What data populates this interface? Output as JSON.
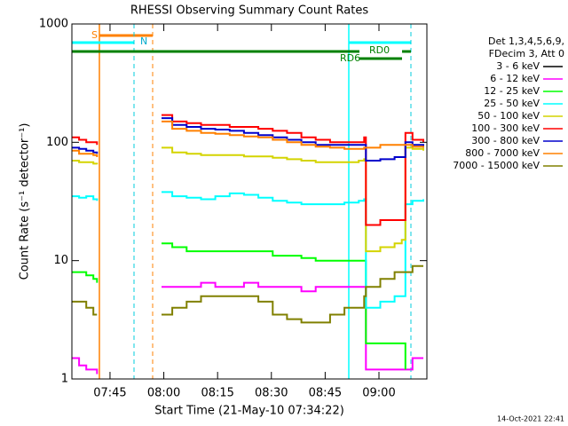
{
  "chart_data": {
    "type": "line",
    "title": "RHESSI Observing Summary Count Rates",
    "xlabel": "Start Time (21-May-10 07:34:22)",
    "ylabel": "Count Rate (s⁻¹ detector⁻¹)",
    "legend_title": [
      "Det 1,3,4,5,6,9,",
      "FDecim 3, Att 0"
    ],
    "legend": "right",
    "log_y": true,
    "footer": "14-Oct-2021 22:41",
    "annotations": [
      "S",
      "N",
      "RD0",
      "RD6"
    ],
    "xlim": [
      0,
      99
    ],
    "xticks": [
      {
        "value": 10.633,
        "label": "07:45"
      },
      {
        "value": 25.633,
        "label": "08:00"
      },
      {
        "value": 40.633,
        "label": "08:15"
      },
      {
        "value": 55.633,
        "label": "08:30"
      },
      {
        "value": 70.633,
        "label": "08:45"
      },
      {
        "value": 85.633,
        "label": "09:00"
      }
    ],
    "ylim": [
      1,
      1000
    ],
    "yticks": [
      1,
      10,
      100,
      1000
    ],
    "x": [
      0,
      2,
      4,
      6,
      7,
      16,
      25,
      28,
      32,
      36,
      40,
      44,
      48,
      52,
      56,
      60,
      64,
      68,
      72,
      76,
      80,
      81.5,
      82,
      86,
      90,
      92,
      93,
      95,
      98
    ],
    "series": [
      {
        "name": "3 - 6 keV",
        "color": "#000000",
        "values": [
          null,
          null,
          null,
          null,
          null,
          null,
          null,
          null,
          null,
          null,
          null,
          null,
          null,
          null,
          null,
          null,
          null,
          null,
          null,
          null,
          null,
          null,
          null,
          null,
          null,
          null,
          null,
          null,
          null
        ]
      },
      {
        "name": "6 - 12 keV",
        "color": "#ff00ff",
        "values": [
          1.5,
          1.3,
          1.2,
          1.2,
          1.1,
          null,
          6,
          6,
          6,
          6.5,
          6,
          6,
          6.5,
          6,
          6,
          6,
          5.5,
          6,
          6,
          6,
          6,
          6,
          1.2,
          1.2,
          1.2,
          1.2,
          1.2,
          1.5,
          1.5
        ]
      },
      {
        "name": "12 - 25 keV",
        "color": "#00ff00",
        "values": [
          8,
          8,
          7.5,
          7,
          6.5,
          null,
          14,
          13,
          12,
          12,
          12,
          12,
          12,
          12,
          11,
          11,
          10.5,
          10,
          10,
          10,
          10,
          10,
          2,
          2,
          2,
          2,
          1.2,
          null,
          null
        ]
      },
      {
        "name": "25 - 50 keV",
        "color": "#00ffff",
        "values": [
          35,
          34,
          35,
          33,
          32,
          null,
          38,
          35,
          34,
          33,
          35,
          37,
          36,
          34,
          32,
          31,
          30,
          30,
          30,
          31,
          32,
          33,
          4,
          4.5,
          5,
          5,
          30,
          32,
          33
        ]
      },
      {
        "name": "50 - 100 keV",
        "color": "#d4d400",
        "values": [
          70,
          68,
          68,
          66,
          65,
          null,
          90,
          82,
          80,
          78,
          78,
          78,
          76,
          76,
          74,
          72,
          70,
          68,
          68,
          68,
          70,
          72,
          12,
          13,
          14,
          15,
          90,
          88,
          85
        ]
      },
      {
        "name": "100 - 300 keV",
        "color": "#ff0000",
        "values": [
          110,
          105,
          100,
          100,
          95,
          null,
          170,
          150,
          145,
          140,
          140,
          135,
          135,
          130,
          125,
          120,
          110,
          105,
          100,
          100,
          100,
          110,
          20,
          22,
          22,
          22,
          120,
          105,
          100
        ]
      },
      {
        "name": "300 - 800 keV",
        "color": "#0000cc",
        "values": [
          90,
          88,
          85,
          82,
          80,
          null,
          160,
          140,
          135,
          130,
          128,
          125,
          120,
          115,
          110,
          105,
          100,
          95,
          95,
          95,
          95,
          95,
          70,
          72,
          75,
          75,
          100,
          95,
          90
        ]
      },
      {
        "name": "800 - 7000 keV",
        "color": "#ff8000",
        "values": [
          85,
          80,
          80,
          78,
          75,
          null,
          150,
          130,
          125,
          120,
          118,
          115,
          112,
          110,
          105,
          100,
          95,
          92,
          90,
          88,
          88,
          90,
          90,
          95,
          95,
          95,
          95,
          92,
          90
        ]
      },
      {
        "name": "7000 - 15000 keV",
        "color": "#808000",
        "values": [
          4.5,
          4.5,
          4,
          3.5,
          3.5,
          null,
          3.5,
          4,
          4.5,
          5,
          5,
          5,
          5,
          4.5,
          3.5,
          3.2,
          3,
          3,
          3.5,
          4,
          4,
          5,
          6,
          7,
          8,
          8,
          8,
          9,
          9
        ]
      }
    ]
  }
}
